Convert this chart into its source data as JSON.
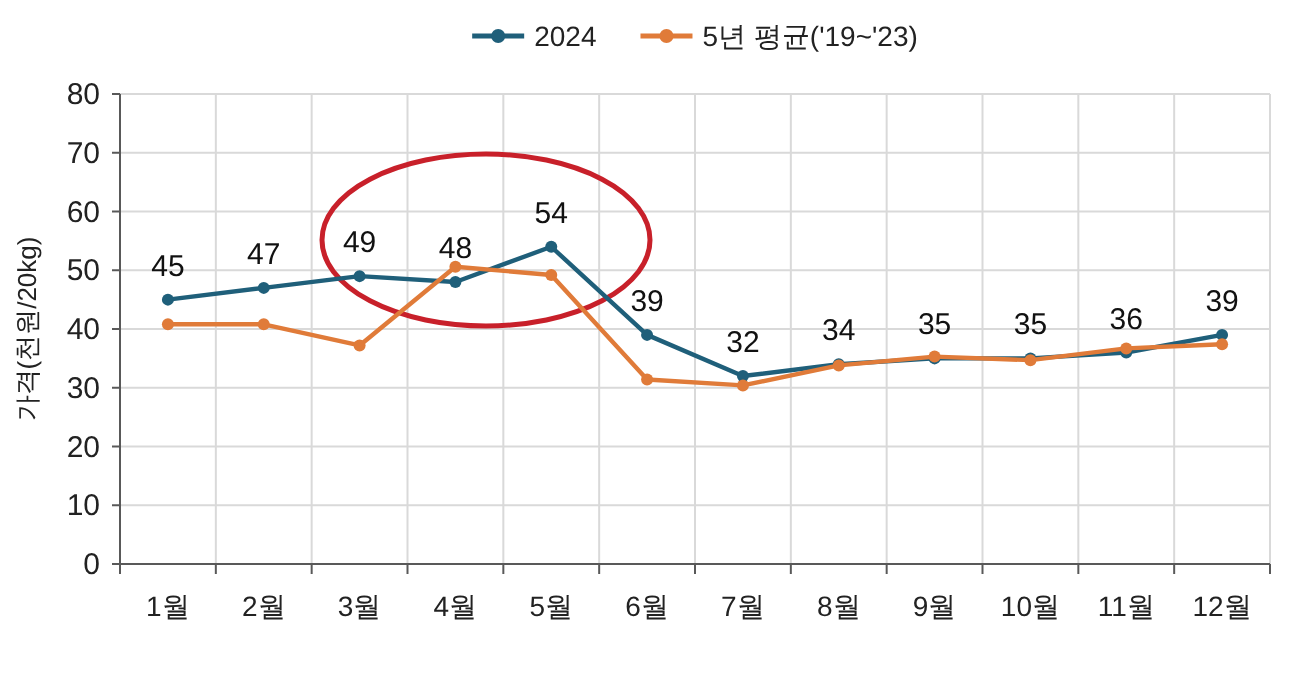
{
  "chart_data": {
    "type": "line",
    "ylabel": "가격(천원/20kg)",
    "categories": [
      "1월",
      "2월",
      "3월",
      "4월",
      "5월",
      "6월",
      "7월",
      "8월",
      "9월",
      "10월",
      "11월",
      "12월"
    ],
    "series": [
      {
        "name": "2024",
        "color": "#1f5f7a",
        "values": [
          45,
          47,
          49,
          48,
          54,
          39,
          32,
          34,
          35,
          35,
          36,
          39
        ],
        "value_labels": [
          "45",
          "47",
          "49",
          "48",
          "54",
          "39",
          "32",
          "34",
          "35",
          "35",
          "36",
          "39"
        ]
      },
      {
        "name": "5년 평균('19~'23)",
        "color": "#e07b39",
        "values": [
          40.8,
          40.8,
          37.2,
          50.6,
          49.2,
          31.4,
          30.4,
          33.8,
          35.3,
          34.7,
          36.7,
          37.4
        ]
      }
    ],
    "ylim": [
      0,
      80
    ],
    "yticks": [
      0,
      10,
      20,
      30,
      40,
      50,
      60,
      70,
      80
    ],
    "grid": true,
    "legend": "top",
    "marker": "circle",
    "line_style": "solid"
  }
}
